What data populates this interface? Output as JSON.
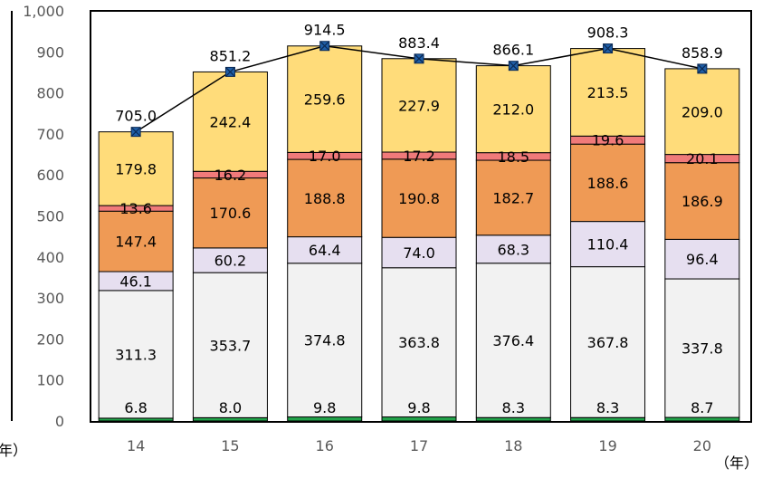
{
  "chart_data": {
    "type": "bar",
    "stacked": true,
    "categories": [
      "14",
      "15",
      "16",
      "17",
      "18",
      "19",
      "20"
    ],
    "x_unit_label": "（年）",
    "left_cut_label": "年）",
    "ylim": [
      0,
      1000
    ],
    "y_ticks": [
      "0",
      "100",
      "200",
      "300",
      "400",
      "500",
      "600",
      "700",
      "800",
      "900",
      "1,000"
    ],
    "grid": false,
    "series": [
      {
        "values": [
          6.8,
          8.0,
          9.8,
          9.8,
          8.3,
          8.3,
          8.7
        ],
        "color": "#22a34a"
      },
      {
        "values": [
          311.3,
          353.7,
          374.8,
          363.8,
          376.4,
          367.8,
          337.8
        ],
        "color": "#f2f2f2"
      },
      {
        "values": [
          46.1,
          60.2,
          64.4,
          74.0,
          68.3,
          110.4,
          96.4
        ],
        "color": "#e6dff0"
      },
      {
        "values": [
          147.4,
          170.6,
          188.8,
          190.8,
          182.7,
          188.6,
          186.9
        ],
        "color": "#ef9a55"
      },
      {
        "values": [
          13.6,
          16.2,
          17.0,
          17.2,
          18.5,
          19.6,
          20.1
        ],
        "color": "#f07a7a"
      },
      {
        "values": [
          179.8,
          242.4,
          259.6,
          227.9,
          212.0,
          213.5,
          209.0
        ],
        "color": "#ffdc7a"
      }
    ],
    "totals": {
      "values": [
        705.0,
        851.2,
        914.5,
        883.4,
        866.1,
        908.3,
        858.9
      ],
      "color": "#1f5fa8"
    },
    "segment_labels": [
      [
        "6.8",
        "311.3",
        "46.1",
        "147.4",
        "13.6",
        "179.8"
      ],
      [
        "8.0",
        "353.7",
        "60.2",
        "170.6",
        "16.2",
        "242.4"
      ],
      [
        "9.8",
        "374.8",
        "64.4",
        "188.8",
        "17.0",
        "259.6"
      ],
      [
        "9.8",
        "363.8",
        "74.0",
        "190.8",
        "17.2",
        "227.9"
      ],
      [
        "8.3",
        "376.4",
        "68.3",
        "182.7",
        "18.5",
        "212.0"
      ],
      [
        "8.3",
        "367.8",
        "110.4",
        "188.6",
        "19.6",
        "213.5"
      ],
      [
        "8.7",
        "337.8",
        "96.4",
        "186.9",
        "20.1",
        "209.0"
      ]
    ],
    "total_labels": [
      "705.0",
      "851.2",
      "914.5",
      "883.4",
      "866.1",
      "908.3",
      "858.9"
    ]
  }
}
